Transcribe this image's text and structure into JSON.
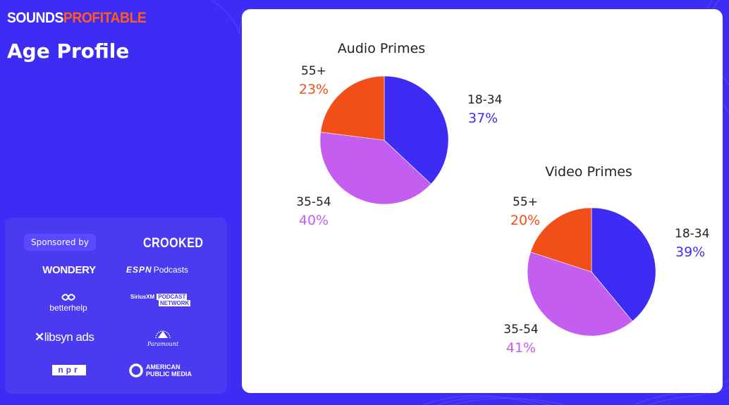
{
  "logo": {
    "part1": "SOUNDS",
    "part2": "PROFITABLE"
  },
  "page_title": "Age Profile",
  "sponsors": {
    "badge": "Sponsored by",
    "items": {
      "crooked": "CROOKED",
      "wondery": "WONDERY",
      "espn_a": "ESPN",
      "espn_b": "Podcasts",
      "betterhelp": "betterhelp",
      "siriusxm_a": "SiriusXM",
      "siriusxm_b": "PODCAST",
      "siriusxm_c": "NETWORK",
      "libsyn": "libsyn ads",
      "paramount": "Paramount",
      "npr": "npr",
      "apm_a": "AMERICAN",
      "apm_b": "PUBLIC MEDIA"
    }
  },
  "colors": {
    "accent_blue": "#3d2cf4",
    "purple": "#c45ef0",
    "orange": "#f24e1a"
  },
  "chart_data": [
    {
      "type": "pie",
      "title": "Audio Primes",
      "slices": [
        {
          "label": "18-34",
          "value": 37,
          "display": "37%",
          "color": "#3d2cf4"
        },
        {
          "label": "35-54",
          "value": 40,
          "display": "40%",
          "color": "#c45ef0"
        },
        {
          "label": "55+",
          "value": 23,
          "display": "23%",
          "color": "#f24e1a"
        }
      ]
    },
    {
      "type": "pie",
      "title": "Video Primes",
      "slices": [
        {
          "label": "18-34",
          "value": 39,
          "display": "39%",
          "color": "#3d2cf4"
        },
        {
          "label": "35-54",
          "value": 41,
          "display": "41%",
          "color": "#c45ef0"
        },
        {
          "label": "55+",
          "value": 20,
          "display": "20%",
          "color": "#f24e1a"
        }
      ]
    }
  ]
}
